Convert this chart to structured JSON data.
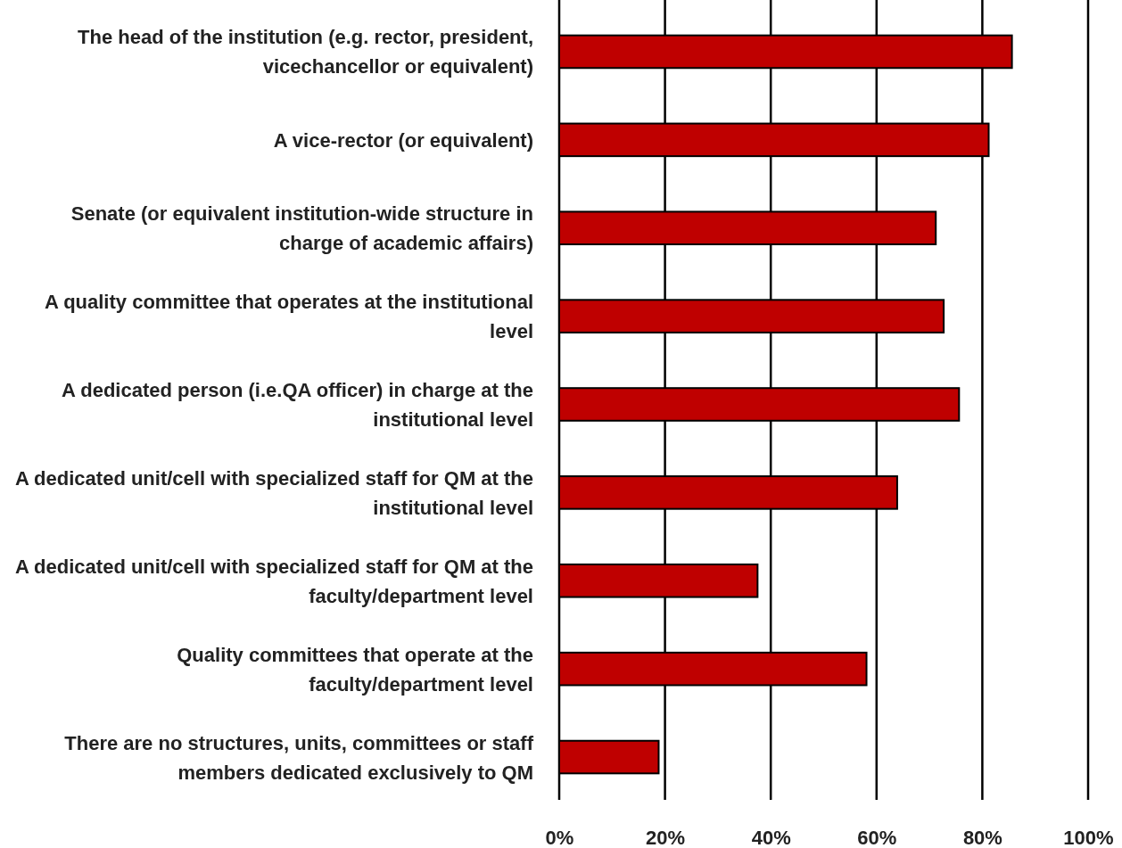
{
  "chart_data": {
    "type": "bar",
    "orientation": "horizontal",
    "categories": [
      "The head of the institution (e.g. rector, president, vicechancellor or equivalent)",
      "A vice-rector (or equivalent)",
      "Senate (or equivalent institution-wide structure in charge of academic affairs)",
      "A quality committee that operates at the institutional level",
      "A dedicated person (i.e.QA officer) in charge at the institutional level",
      "A dedicated unit/cell with specialized staff for QM at the institutional level",
      "A dedicated unit/cell with specialized staff for QM at the faculty/department level",
      "Quality committees that operate at the faculty/department level",
      "There are no structures, units, committees or staff members dedicated exclusively to QM"
    ],
    "values": [
      85.6,
      81.2,
      71.2,
      72.7,
      75.6,
      63.9,
      37.5,
      58.1,
      18.8
    ],
    "color": "#bf0000",
    "xlim": [
      0,
      100
    ],
    "xticks": [
      {
        "value": 0,
        "label": "0%"
      },
      {
        "value": 20,
        "label": "20%"
      },
      {
        "value": 40,
        "label": "40%"
      },
      {
        "value": 60,
        "label": "60%"
      },
      {
        "value": 80,
        "label": "80%"
      },
      {
        "value": 100,
        "label": "100%"
      }
    ],
    "grid": "x"
  }
}
